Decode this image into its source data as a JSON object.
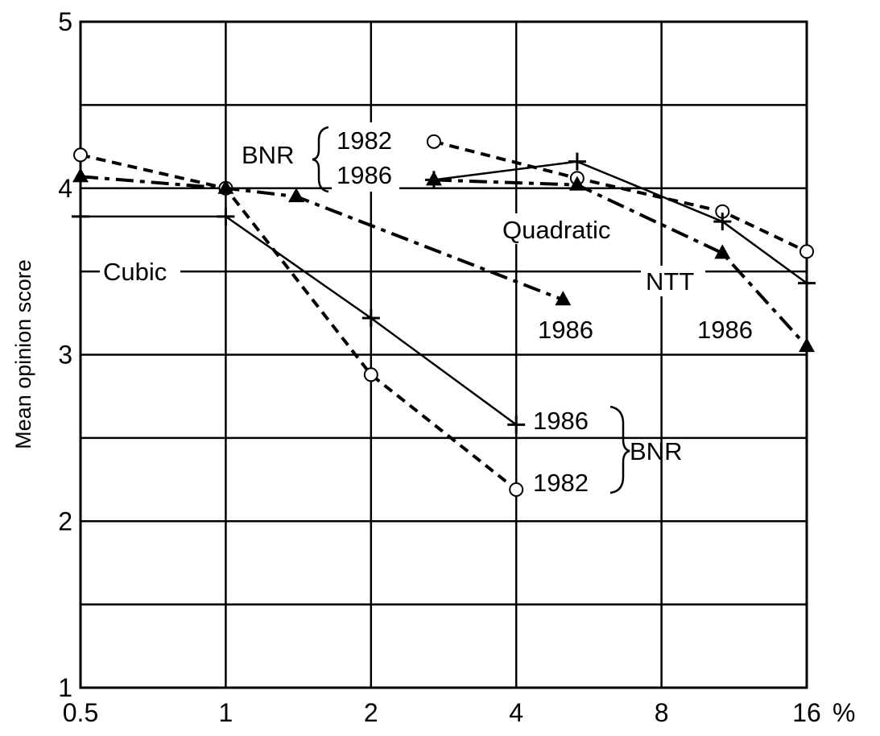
{
  "chart_data": {
    "type": "line",
    "xscale": "log2",
    "x_ticks": [
      0.5,
      1,
      2,
      4,
      8,
      16
    ],
    "x_tick_labels": [
      "0.5",
      "1",
      "2",
      "4",
      "8",
      "16"
    ],
    "x_unit": "%",
    "ylabel": "Mean opinion score",
    "ylim": [
      1,
      5
    ],
    "y_ticks": [
      1,
      2,
      3,
      4,
      5
    ],
    "y_tick_labels": [
      "1",
      "2",
      "3",
      "4",
      "5"
    ],
    "y_gridlines": [
      1.5,
      2,
      2.5,
      3,
      3.5,
      4,
      4.5
    ],
    "grid": true,
    "series": [
      {
        "name": "",
        "marker": "plus",
        "line": "solid",
        "points": [
          [
            0.5,
            3.83
          ],
          [
            1,
            3.83
          ],
          [
            2,
            3.22
          ],
          [
            4,
            2.58
          ]
        ]
      },
      {
        "name": "",
        "marker": "circle",
        "line": "dashed",
        "points": [
          [
            0.5,
            4.2
          ],
          [
            1,
            4.0
          ],
          [
            2,
            2.88
          ],
          [
            4,
            2.19
          ]
        ]
      },
      {
        "name": "",
        "marker": "triangle",
        "line": "dashdot",
        "points": [
          [
            0.5,
            4.07
          ],
          [
            1,
            4.0
          ],
          [
            1.4,
            3.95
          ],
          [
            5,
            3.33
          ]
        ]
      },
      {
        "name": "",
        "marker": "circle",
        "line": "dashed",
        "points": [
          [
            2.7,
            4.28
          ],
          [
            5.35,
            4.06
          ],
          [
            10.7,
            3.86
          ],
          [
            16,
            3.62
          ]
        ]
      },
      {
        "name": "",
        "marker": "triangle",
        "line": "dashdot",
        "points": [
          [
            2.7,
            4.05
          ],
          [
            5.35,
            4.02
          ],
          [
            10.7,
            3.61
          ],
          [
            16,
            3.05
          ]
        ]
      },
      {
        "name": "",
        "marker": "plus",
        "line": "solid",
        "points": [
          [
            2.7,
            4.05
          ],
          [
            5.35,
            4.16
          ],
          [
            10.7,
            3.8
          ],
          [
            16,
            3.43
          ]
        ]
      }
    ],
    "annotations": [
      {
        "id": "cubic",
        "text": "Cubic"
      },
      {
        "id": "bnr-top",
        "text": "BNR"
      },
      {
        "id": "bnr-top-1982",
        "text": "1982"
      },
      {
        "id": "bnr-top-1986",
        "text": "1986"
      },
      {
        "id": "quadratic",
        "text": "Quadratic"
      },
      {
        "id": "ntt",
        "text": "NTT"
      },
      {
        "id": "mid-1986",
        "text": "1986"
      },
      {
        "id": "right-1986",
        "text": "1986"
      },
      {
        "id": "bnr-bottom-1986",
        "text": "1986"
      },
      {
        "id": "bnr-bottom-1982",
        "text": "1982"
      },
      {
        "id": "bnr-bottom",
        "text": "BNR"
      }
    ]
  }
}
